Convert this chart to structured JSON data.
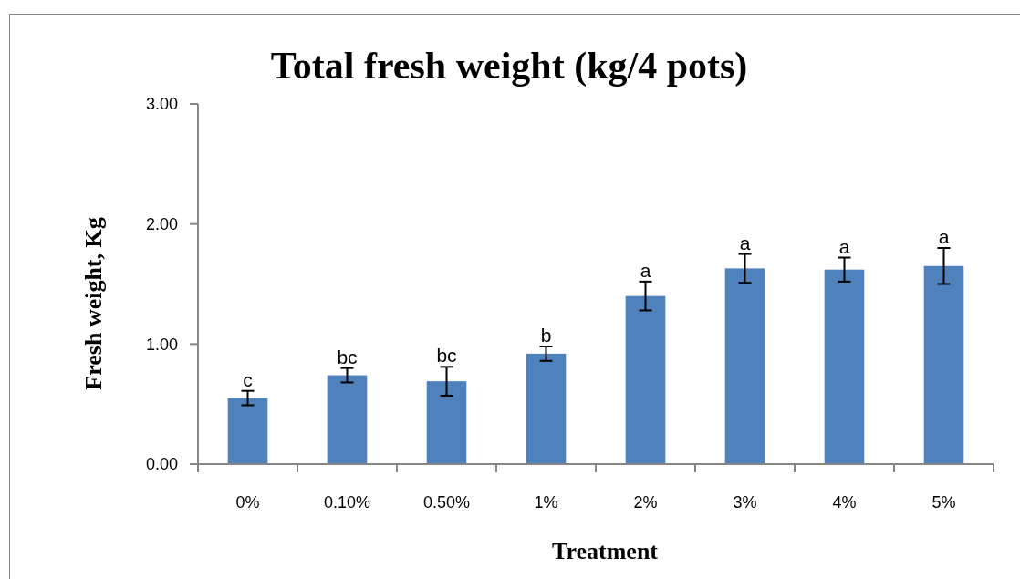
{
  "chart_data": {
    "type": "bar",
    "title": "Total fresh weight (kg/4 pots)",
    "xlabel": "Treatment",
    "ylabel": "Fresh weight, Kg",
    "categories": [
      "0%",
      "0.10%",
      "0.50%",
      "1%",
      "2%",
      "3%",
      "4%",
      "5%"
    ],
    "values": [
      0.55,
      0.74,
      0.69,
      0.92,
      1.4,
      1.63,
      1.62,
      1.65
    ],
    "errors": [
      0.06,
      0.06,
      0.12,
      0.06,
      0.12,
      0.12,
      0.1,
      0.15
    ],
    "color": "#4f81bd",
    "ylim": [
      0,
      3
    ],
    "yticks": [
      {
        "value": 0,
        "label": "0.00"
      },
      {
        "value": 1,
        "label": "1.00"
      },
      {
        "value": 2,
        "label": "2.00"
      },
      {
        "value": 3,
        "label": "3.00"
      }
    ],
    "annotations": [
      {
        "text": "c",
        "x": "0%",
        "y": 0.61
      },
      {
        "text": "bc",
        "x": "0.10%",
        "y": 0.8
      },
      {
        "text": "bc",
        "x": "0.50%",
        "y": 0.81
      },
      {
        "text": "b",
        "x": "1%",
        "y": 0.98
      },
      {
        "text": "a",
        "x": "2%",
        "y": 1.52
      },
      {
        "text": "a",
        "x": "3%",
        "y": 1.75
      },
      {
        "text": "a",
        "x": "4%",
        "y": 1.72
      },
      {
        "text": "a",
        "x": "5%",
        "y": 1.8
      }
    ]
  }
}
